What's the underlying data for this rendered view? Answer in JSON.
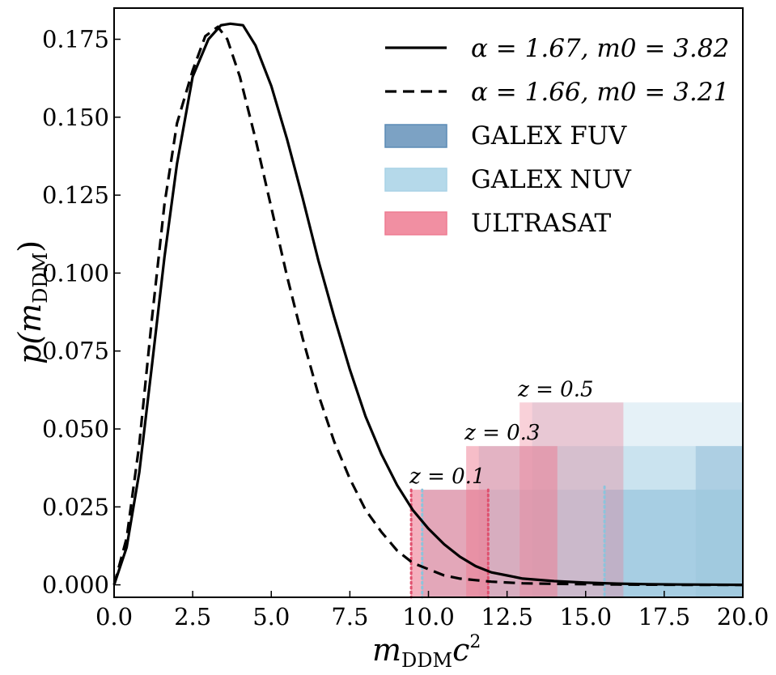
{
  "chart_data": {
    "type": "line",
    "title": "",
    "xlabel": "m_DDM c^2",
    "ylabel": "p(m_DDM)",
    "xlim": [
      0,
      20
    ],
    "ylim": [
      -0.004,
      0.185
    ],
    "grid": false,
    "legend_position": "top-right",
    "xticks": [
      "0.0",
      "2.5",
      "5.0",
      "7.5",
      "10.0",
      "12.5",
      "15.0",
      "17.5",
      "20.0"
    ],
    "yticks": [
      "0.000",
      "0.025",
      "0.050",
      "0.075",
      "0.100",
      "0.125",
      "0.150",
      "0.175"
    ],
    "series": [
      {
        "name": "α = 1.67, m0 = 3.82",
        "style": "solid",
        "x": [
          0.0,
          0.4,
          0.8,
          1.2,
          1.6,
          2.0,
          2.5,
          3.0,
          3.4,
          3.7,
          4.1,
          4.5,
          5.0,
          5.5,
          6.0,
          6.5,
          7.0,
          7.5,
          8.0,
          8.5,
          9.0,
          9.5,
          10.0,
          10.5,
          11.0,
          11.5,
          12.0,
          12.5,
          13.0,
          14.0,
          15.0,
          16.0,
          17.0,
          18.0,
          20.0
        ],
        "y": [
          0.0,
          0.012,
          0.036,
          0.07,
          0.105,
          0.135,
          0.163,
          0.175,
          0.1795,
          0.18,
          0.1795,
          0.173,
          0.16,
          0.143,
          0.124,
          0.104,
          0.086,
          0.069,
          0.054,
          0.042,
          0.032,
          0.024,
          0.018,
          0.013,
          0.009,
          0.006,
          0.004,
          0.003,
          0.002,
          0.0012,
          0.0007,
          0.0004,
          0.0002,
          0.0001,
          0.0
        ]
      },
      {
        "name": "α = 1.66, m0 = 3.21",
        "style": "dashed",
        "x": [
          0.0,
          0.4,
          0.8,
          1.2,
          1.6,
          2.0,
          2.5,
          2.9,
          3.3,
          3.6,
          4.0,
          4.5,
          5.0,
          5.5,
          6.0,
          6.5,
          7.0,
          7.5,
          8.0,
          8.5,
          9.0,
          9.5,
          10.0,
          10.5,
          11.0,
          11.5,
          12.0,
          13.0,
          14.0,
          16.0,
          18.0,
          20.0
        ],
        "y": [
          0.0,
          0.015,
          0.045,
          0.085,
          0.122,
          0.148,
          0.165,
          0.176,
          0.179,
          0.175,
          0.163,
          0.143,
          0.121,
          0.099,
          0.079,
          0.061,
          0.046,
          0.034,
          0.024,
          0.017,
          0.011,
          0.007,
          0.005,
          0.003,
          0.002,
          0.0015,
          0.001,
          0.0005,
          0.0003,
          0.0001,
          0.0,
          0.0
        ]
      }
    ],
    "bands": [
      {
        "name": "GALEX FUV",
        "color": "#5b8bb5",
        "legend_opacity": 0.8,
        "regions": [
          {
            "z": "0.1",
            "x0": 15.6,
            "x1": 20.0,
            "y1": 0.0305,
            "opacity": 0.55
          },
          {
            "z": "0.3",
            "x0": 18.5,
            "x1": 20.0,
            "y1": 0.0445,
            "opacity": 0.45
          },
          {
            "z": "0.5",
            "x0": 20.0,
            "x1": 20.0,
            "y1": 0.0585,
            "opacity": 0.35
          }
        ]
      },
      {
        "name": "GALEX NUV",
        "color": "#a8d2e6",
        "legend_opacity": 0.85,
        "regions": [
          {
            "z": "0.1",
            "x0": 9.8,
            "x1": 20.0,
            "y1": 0.0305,
            "opacity": 0.5
          },
          {
            "z": "0.3",
            "x0": 11.6,
            "x1": 20.0,
            "y1": 0.0445,
            "opacity": 0.45
          },
          {
            "z": "0.5",
            "x0": 13.3,
            "x1": 20.0,
            "y1": 0.0585,
            "opacity": 0.3
          }
        ]
      },
      {
        "name": "ULTRASAT",
        "color": "#ee7b92",
        "legend_opacity": 0.85,
        "regions": [
          {
            "z": "0.1",
            "x0": 9.45,
            "x1": 11.9,
            "y1": 0.0305,
            "opacity": 0.6
          },
          {
            "z": "0.3",
            "x0": 11.2,
            "x1": 14.1,
            "y1": 0.0445,
            "opacity": 0.5
          },
          {
            "z": "0.5",
            "x0": 12.9,
            "x1": 16.2,
            "y1": 0.0585,
            "opacity": 0.35
          }
        ]
      }
    ],
    "dotted_markers": [
      {
        "x": 9.45,
        "y1": 0.0305,
        "color": "#e0506e"
      },
      {
        "x": 11.9,
        "y1": 0.0305,
        "color": "#e0506e"
      },
      {
        "x": 9.8,
        "y1": 0.0305,
        "color": "#8cc4dc"
      },
      {
        "x": 15.6,
        "y1": 0.0315,
        "color": "#8cc4dc"
      }
    ],
    "annotations": [
      {
        "text": "z = 0.1",
        "x": 9.45,
        "y": 0.0305
      },
      {
        "text": "z = 0.3",
        "x": 11.2,
        "y": 0.0445
      },
      {
        "text": "z = 0.5",
        "x": 12.9,
        "y": 0.0585
      }
    ]
  }
}
